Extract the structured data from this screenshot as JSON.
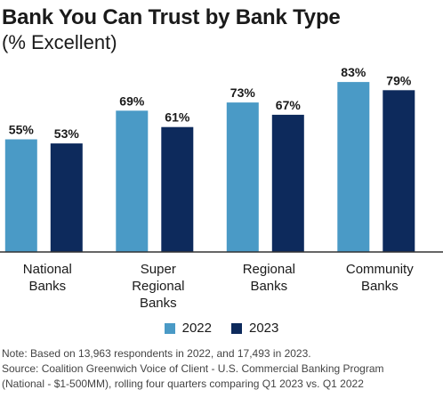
{
  "title": "Bank You Can Trust by Bank Type",
  "subtitle": "(% Excellent)",
  "chart_data": {
    "type": "bar",
    "categories": [
      [
        "National",
        "Banks"
      ],
      [
        "Super",
        "Regional",
        "Banks"
      ],
      [
        "Regional",
        "Banks"
      ],
      [
        "Community",
        "Banks"
      ]
    ],
    "series": [
      {
        "name": "2022",
        "values": [
          55,
          69,
          73,
          83
        ],
        "labels": [
          "55%",
          "69%",
          "73%",
          "83%"
        ],
        "color": "#4a9ac6"
      },
      {
        "name": "2023",
        "values": [
          53,
          61,
          67,
          79
        ],
        "labels": [
          "53%",
          "61%",
          "67%",
          "79%"
        ],
        "color": "#0d2a5c"
      }
    ],
    "ylim": [
      0,
      100
    ],
    "grid": false,
    "legend_position": "bottom"
  },
  "notes": [
    "Note: Based on 13,963 respondents in 2022, and 17,493 in 2023.",
    "Source: Coalition Greenwich Voice of Client - U.S. Commercial Banking Program",
    "(National - $1-500MM), rolling four quarters comparing Q1 2023 vs. Q1 2022"
  ]
}
